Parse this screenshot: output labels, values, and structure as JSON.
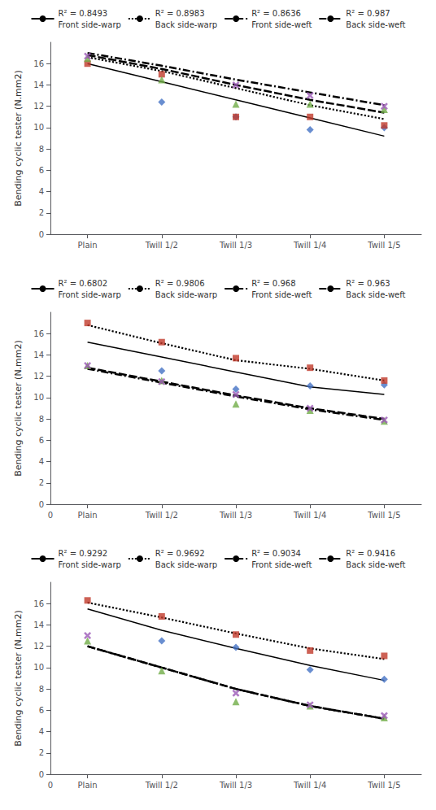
{
  "chart_data": [
    {
      "type": "line",
      "y_label": "Bending cyclic tester (N.mm2)",
      "x": [
        1,
        2,
        3,
        4,
        5
      ],
      "xlim": [
        0.5,
        5.5
      ],
      "xticks": [
        {
          "value": 1,
          "label": "Plain"
        },
        {
          "value": 2,
          "label": "Twill 1/2"
        },
        {
          "value": 3,
          "label": "Twill 1/3"
        },
        {
          "value": 4,
          "label": "Twill 1/4"
        },
        {
          "value": 5,
          "label": "Twill 1/5"
        }
      ],
      "ylim": [
        0,
        18
      ],
      "yticks": [
        0,
        2,
        4,
        6,
        8,
        10,
        12,
        14,
        16
      ],
      "grid": false,
      "legend": "top",
      "series": [
        {
          "name": "Front side-warp",
          "type": "line",
          "line_style": "solid",
          "color": "#000000",
          "values": [
            16.0,
            14.3,
            12.6,
            10.9,
            9.2
          ]
        },
        {
          "name": "Back side-warp",
          "type": "line",
          "line_style": "dotted",
          "color": "#000000",
          "values": [
            16.6,
            15.3,
            13.7,
            12.1,
            10.8
          ]
        },
        {
          "name": "Front side-weft",
          "type": "line",
          "line_style": "dashed",
          "color": "#000000",
          "values": [
            16.8,
            15.5,
            14.0,
            12.6,
            11.4
          ]
        },
        {
          "name": "Back side-weft",
          "type": "line",
          "line_style": "dashdot",
          "color": "#000000",
          "values": [
            17.0,
            15.8,
            14.5,
            13.3,
            12.1
          ]
        },
        {
          "type": "scatter",
          "marker": "diamond",
          "color": "#4472C4",
          "values": [
            null,
            12.4,
            11.0,
            9.8,
            10.0
          ]
        },
        {
          "type": "scatter",
          "marker": "square",
          "color": "#C0392B",
          "values": [
            16.0,
            15.0,
            11.0,
            11.0,
            10.2
          ]
        },
        {
          "type": "scatter",
          "marker": "triangle",
          "color": "#70AD47",
          "values": [
            16.5,
            14.5,
            12.2,
            12.2,
            11.7
          ]
        },
        {
          "type": "scatter",
          "marker": "x",
          "color": "#9B59B6",
          "values": [
            16.7,
            null,
            14.0,
            13.0,
            12.0
          ]
        }
      ],
      "annotations": [
        {
          "text": "R² = 0.8493",
          "series": "Front side-warp"
        },
        {
          "text": "R² = 0.8983",
          "series": "Back side-warp"
        },
        {
          "text": "R² = 0.8636",
          "series": "Front side-weft"
        },
        {
          "text": "R² = 0.987",
          "series": "Back side-weft"
        }
      ]
    },
    {
      "type": "line",
      "y_label": "Bending cyclic tester (N.mm2)",
      "x": [
        1,
        2,
        3,
        4,
        5
      ],
      "xlim": [
        0.5,
        5.5
      ],
      "xticks": [
        {
          "value": 1,
          "label": "Plain"
        },
        {
          "value": 2,
          "label": "Twill 1/2"
        },
        {
          "value": 3,
          "label": "Twill 1/3"
        },
        {
          "value": 4,
          "label": "Twill 1/4"
        },
        {
          "value": 5,
          "label": "Twill 1/5"
        }
      ],
      "ylim": [
        0,
        18
      ],
      "yticks": [
        0,
        2,
        4,
        6,
        8,
        10,
        12,
        14,
        16
      ],
      "grid": false,
      "legend": "top",
      "series": [
        {
          "name": "Front side-warp",
          "type": "line",
          "line_style": "solid",
          "color": "#000000",
          "values": [
            15.2,
            13.8,
            12.4,
            11.0,
            10.3
          ]
        },
        {
          "name": "Back side-warp",
          "type": "line",
          "line_style": "dotted",
          "color": "#000000",
          "values": [
            16.8,
            15.1,
            13.5,
            12.7,
            11.6
          ]
        },
        {
          "name": "Front side-weft",
          "type": "line",
          "line_style": "dashed",
          "color": "#000000",
          "values": [
            12.8,
            11.5,
            10.2,
            9.0,
            8.0
          ]
        },
        {
          "name": "Back side-weft",
          "type": "line",
          "line_style": "dashdot",
          "color": "#000000",
          "values": [
            12.7,
            11.4,
            10.1,
            8.9,
            7.9
          ]
        },
        {
          "type": "scatter",
          "marker": "diamond",
          "color": "#4472C4",
          "values": [
            null,
            12.5,
            10.8,
            11.1,
            11.2
          ]
        },
        {
          "type": "scatter",
          "marker": "square",
          "color": "#C0392B",
          "values": [
            17.0,
            15.2,
            13.7,
            12.8,
            11.6
          ]
        },
        {
          "type": "scatter",
          "marker": "triangle",
          "color": "#70AD47",
          "values": [
            13.0,
            11.6,
            9.4,
            8.8,
            7.8
          ]
        },
        {
          "type": "scatter",
          "marker": "x",
          "color": "#9B59B6",
          "values": [
            13.0,
            11.5,
            10.3,
            9.0,
            7.9
          ]
        }
      ],
      "annotations": [
        {
          "text": "R² = 0.6802",
          "series": "Front side-warp"
        },
        {
          "text": "R² = 0.9806",
          "series": "Back side-warp"
        },
        {
          "text": "R² = 0.968",
          "series": "Front side-weft"
        },
        {
          "text": "R² = 0.963",
          "series": "Back side-weft"
        },
        {
          "text": "0",
          "x": 0.5
        }
      ]
    },
    {
      "type": "line",
      "y_label": "Bending cyclic tester (N.mm2)",
      "x": [
        1,
        2,
        3,
        4,
        5
      ],
      "xlim": [
        0.5,
        5.5
      ],
      "xticks": [
        {
          "value": 1,
          "label": "Plain"
        },
        {
          "value": 2,
          "label": "Twill 1/2"
        },
        {
          "value": 3,
          "label": "Twill 1/3"
        },
        {
          "value": 4,
          "label": "Twill 1/4"
        },
        {
          "value": 5,
          "label": "Twill 1/5"
        }
      ],
      "ylim": [
        0,
        18
      ],
      "yticks": [
        0,
        2,
        4,
        6,
        8,
        10,
        12,
        14,
        16
      ],
      "grid": false,
      "legend": "top",
      "series": [
        {
          "name": "Front side-warp",
          "type": "line",
          "line_style": "solid",
          "color": "#000000",
          "values": [
            15.5,
            13.5,
            11.8,
            10.2,
            8.8
          ]
        },
        {
          "name": "Back side-warp",
          "type": "line",
          "line_style": "dotted",
          "color": "#000000",
          "values": [
            16.1,
            14.7,
            13.2,
            11.8,
            10.8
          ]
        },
        {
          "name": "Front side-weft",
          "type": "line",
          "line_style": "dashed",
          "color": "#000000",
          "values": [
            12.0,
            10.0,
            8.0,
            6.4,
            5.2
          ]
        },
        {
          "name": "Back side-weft",
          "type": "line",
          "line_style": "dashdot",
          "color": "#000000",
          "values": [
            12.0,
            10.0,
            8.0,
            6.4,
            5.2
          ]
        },
        {
          "type": "scatter",
          "marker": "diamond",
          "color": "#4472C4",
          "values": [
            null,
            12.5,
            11.9,
            9.8,
            8.9
          ]
        },
        {
          "type": "scatter",
          "marker": "square",
          "color": "#C0392B",
          "values": [
            16.3,
            14.8,
            13.1,
            11.6,
            11.1
          ]
        },
        {
          "type": "scatter",
          "marker": "triangle",
          "color": "#70AD47",
          "values": [
            12.5,
            9.7,
            6.8,
            6.4,
            5.3
          ]
        },
        {
          "type": "scatter",
          "marker": "x",
          "color": "#9B59B6",
          "values": [
            13.0,
            null,
            7.6,
            6.5,
            5.5
          ]
        }
      ],
      "annotations": [
        {
          "text": "R² = 0.9292",
          "series": "Front side-warp"
        },
        {
          "text": "R² = 0.9692",
          "series": "Back side-warp"
        },
        {
          "text": "R² = 0.9034",
          "series": "Front side-weft"
        },
        {
          "text": "R² = 0.9416",
          "series": "Back side-weft"
        },
        {
          "text": "0",
          "x": 0.5
        }
      ]
    }
  ]
}
